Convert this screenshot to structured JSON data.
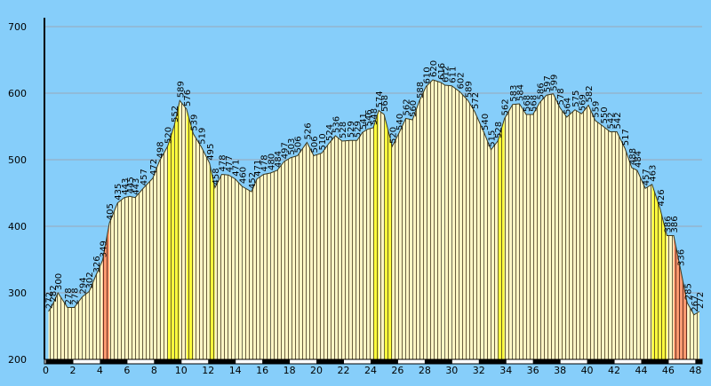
{
  "chart_data": {
    "type": "line",
    "x": [
      0.2,
      0.5,
      0.9,
      1.6,
      2.1,
      2.7,
      3.2,
      3.7,
      4.2,
      4.7,
      5.3,
      5.8,
      6.2,
      6.6,
      7.2,
      7.9,
      8.4,
      9.0,
      9.5,
      9.9,
      10.4,
      10.9,
      11.5,
      12.1,
      12.5,
      13.0,
      13.5,
      14.0,
      14.5,
      15.2,
      15.6,
      16.1,
      16.6,
      17.1,
      17.6,
      18.1,
      18.6,
      19.3,
      19.8,
      20.4,
      20.9,
      21.4,
      21.9,
      22.5,
      23.0,
      23.4,
      23.8,
      24.2,
      24.6,
      25.0,
      25.6,
      26.1,
      26.6,
      27.1,
      27.6,
      28.1,
      28.6,
      29.2,
      29.5,
      30.0,
      30.6,
      31.2,
      31.7,
      32.4,
      32.9,
      33.4,
      33.9,
      34.5,
      35.0,
      35.5,
      36.0,
      36.5,
      37.0,
      37.5,
      38.0,
      38.5,
      39.1,
      39.6,
      40.1,
      40.6,
      41.2,
      41.7,
      42.2,
      42.8,
      43.3,
      43.7,
      44.3,
      44.8,
      45.4,
      45.9,
      46.4,
      46.9,
      47.4,
      47.9,
      48.3
    ],
    "values": [
      272,
      282,
      300,
      278,
      278,
      294,
      302,
      326,
      349,
      405,
      435,
      443,
      445,
      443,
      457,
      472,
      498,
      520,
      552,
      589,
      576,
      539,
      519,
      495,
      458,
      478,
      477,
      471,
      460,
      452,
      471,
      478,
      480,
      484,
      497,
      503,
      506,
      526,
      506,
      510,
      524,
      536,
      528,
      529,
      529,
      541,
      546,
      548,
      574,
      568,
      520,
      540,
      562,
      560,
      588,
      610,
      620,
      616,
      612,
      611,
      602,
      589,
      572,
      540,
      515,
      528,
      562,
      583,
      584,
      568,
      568,
      586,
      597,
      599,
      578,
      564,
      575,
      569,
      582,
      559,
      550,
      542,
      542,
      517,
      488,
      484,
      457,
      463,
      426,
      386,
      386,
      336,
      285,
      267,
      272
    ],
    "xlim": [
      -0.1,
      48.5
    ],
    "xticks": [
      0,
      2,
      4,
      6,
      8,
      10,
      12,
      14,
      16,
      18,
      20,
      22,
      24,
      26,
      28,
      30,
      32,
      34,
      36,
      38,
      40,
      42,
      44,
      46,
      48
    ],
    "ylim": [
      200,
      700
    ],
    "yticks": [
      200,
      300,
      400,
      500,
      600,
      700
    ],
    "grid": true
  }
}
